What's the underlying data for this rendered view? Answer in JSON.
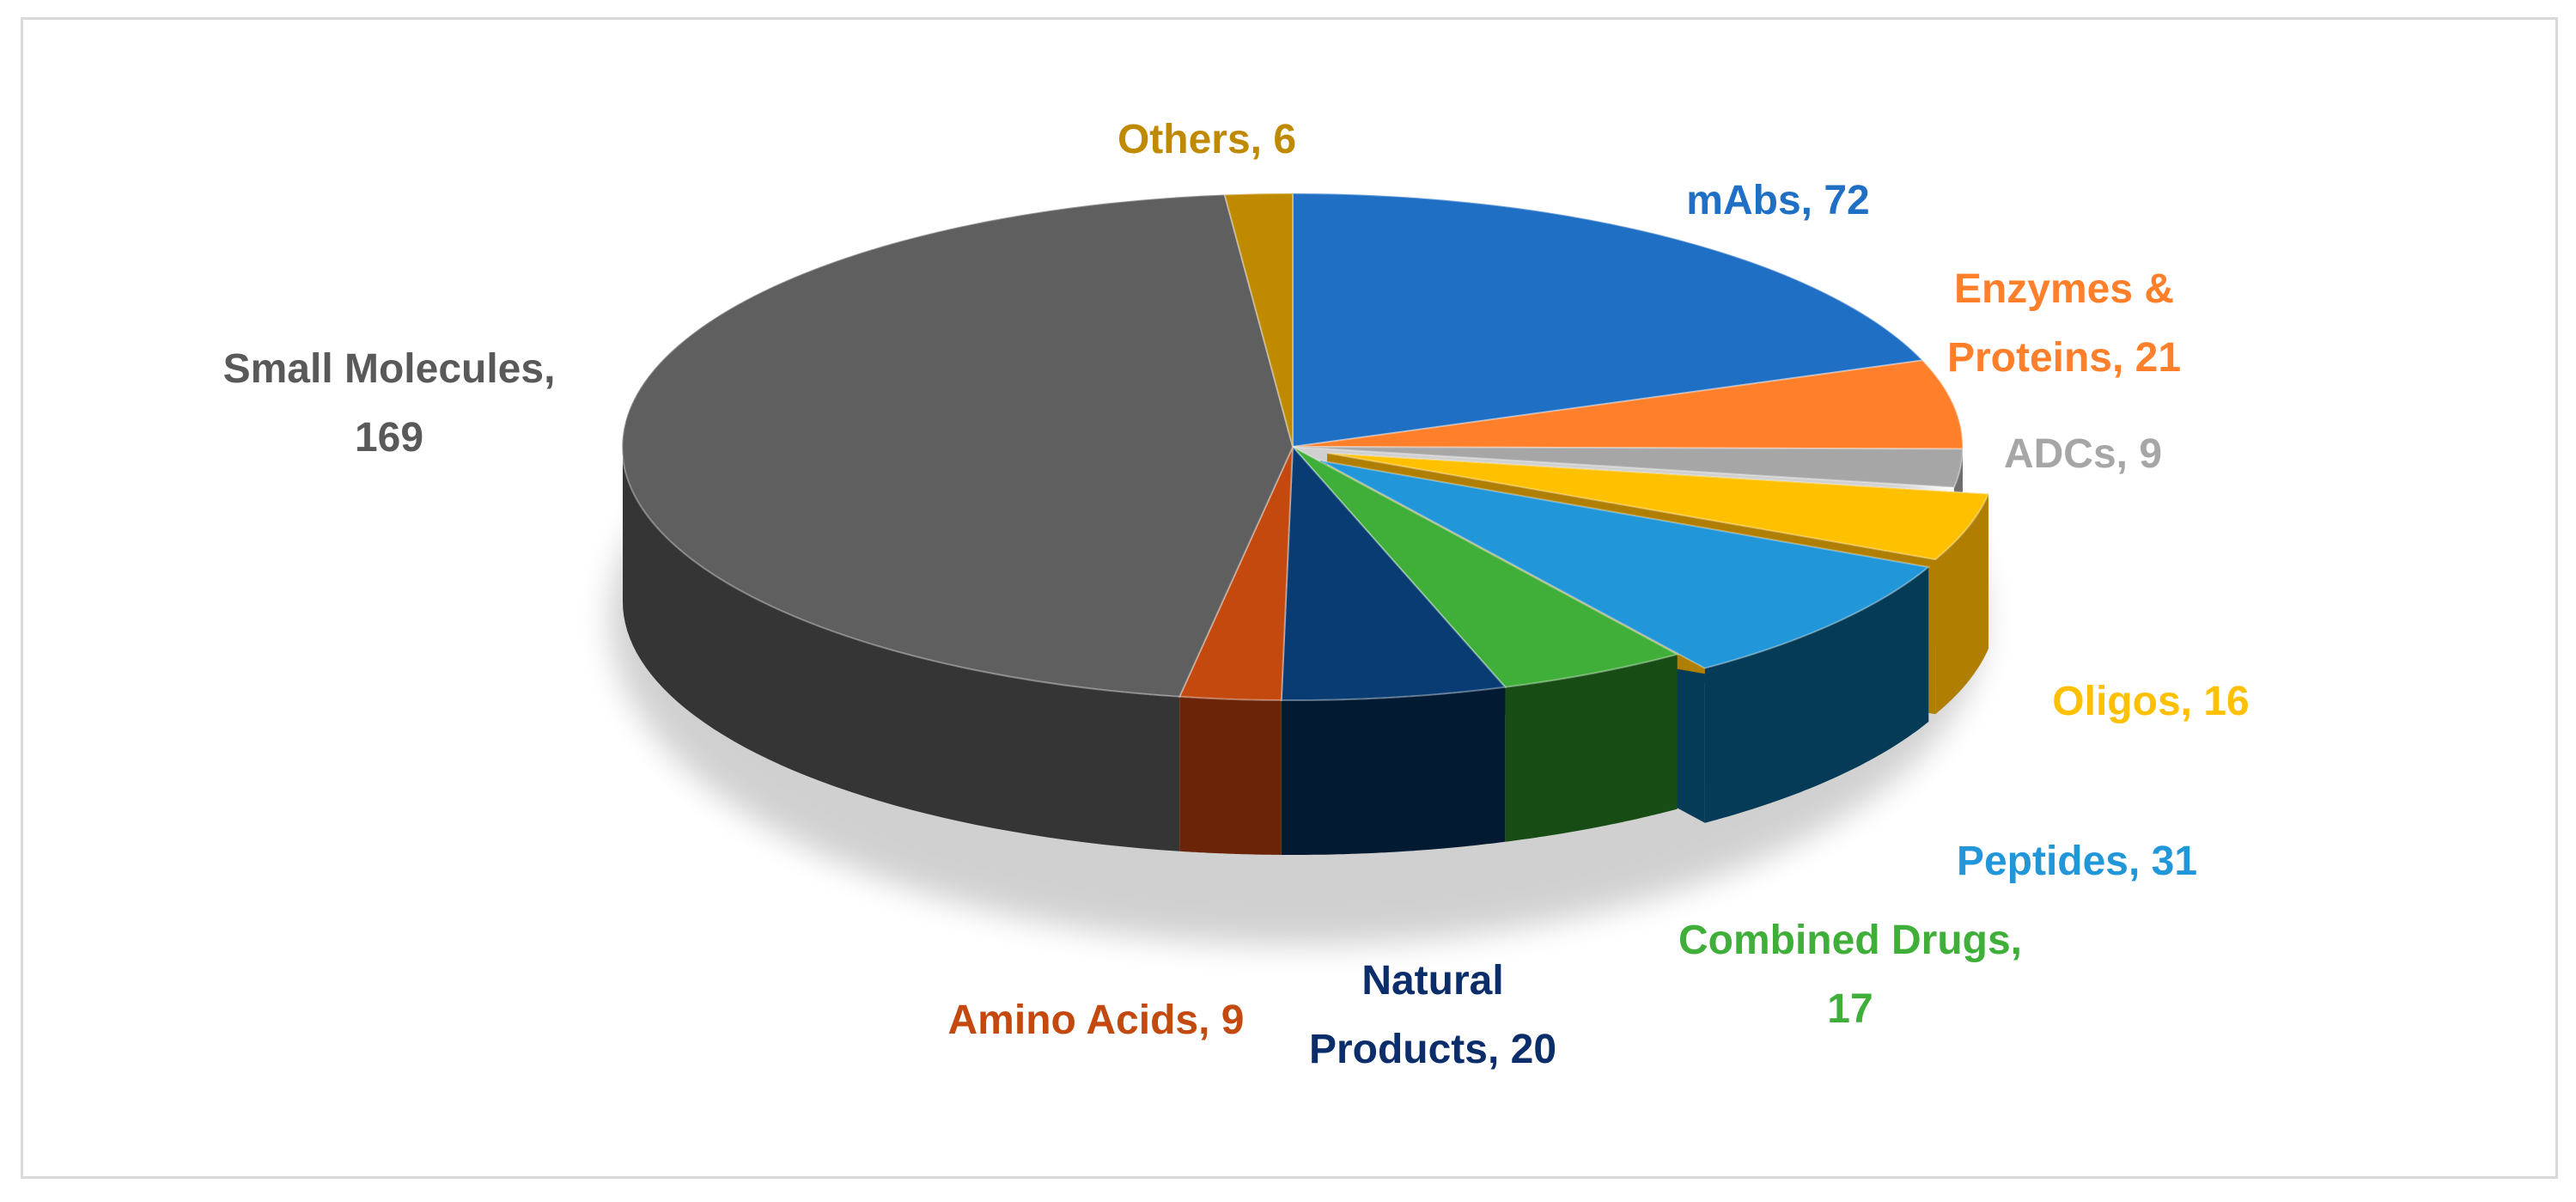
{
  "chart_data": {
    "type": "pie",
    "style": "3d-pie",
    "slices": [
      {
        "name": "mAbs",
        "value": 72,
        "label_lines": [
          "mAbs, 72"
        ],
        "color": "#1F6FC5",
        "dark": "#0F3E73"
      },
      {
        "name": "Enzymes & Proteins",
        "value": 21,
        "label_lines": [
          "Enzymes &",
          "Proteins, 21"
        ],
        "color": "#FF7F2A",
        "dark": "#9A4A14"
      },
      {
        "name": "ADCs",
        "value": 9,
        "label_lines": [
          "ADCs, 9"
        ],
        "color": "#A6A6A6",
        "dark": "#6E6E6E"
      },
      {
        "name": "Oligos",
        "value": 16,
        "label_lines": [
          "Oligos,  16"
        ],
        "color": "#FFC000",
        "dark": "#B07E00"
      },
      {
        "name": "Peptides",
        "value": 31,
        "label_lines": [
          "Peptides, 31"
        ],
        "color": "#2196D8",
        "dark": "#063B57"
      },
      {
        "name": "Combined Drugs",
        "value": 17,
        "label_lines": [
          "Combined Drugs,",
          "17"
        ],
        "color": "#3FAF3A",
        "dark": "#174C14"
      },
      {
        "name": "Natural Products",
        "value": 20,
        "label_lines": [
          "Natural",
          "Products, 20"
        ],
        "color": "#083C72",
        "dark": "#031A33"
      },
      {
        "name": "Amino Acids",
        "value": 9,
        "label_lines": [
          "Amino Acids, 9"
        ],
        "color": "#C4490F",
        "dark": "#6B2408"
      },
      {
        "name": "Small Molecules",
        "value": 169,
        "label_lines": [
          "Small Molecules,",
          "169"
        ],
        "color": "#5F5F5F",
        "dark": "#353535"
      },
      {
        "name": "Others",
        "value": 6,
        "label_lines": [
          "Others, 6"
        ],
        "color": "#BF8A00",
        "dark": "#7A5800"
      }
    ],
    "label_colors": {
      "mAbs": "#1F6FC5",
      "Enzymes & Proteins": "#FF7F2A",
      "ADCs": "#A6A6A6",
      "Oligos": "#FFC000",
      "Peptides": "#2196D8",
      "Combined Drugs": "#3FAF3A",
      "Natural Products": "#0B2E6B",
      "Amino Acids": "#C4490F",
      "Small Molecules": "#595959",
      "Others": "#BF8A00"
    },
    "exploded": [
      "Oligos",
      "Peptides"
    ],
    "title": "",
    "legend": "none"
  }
}
